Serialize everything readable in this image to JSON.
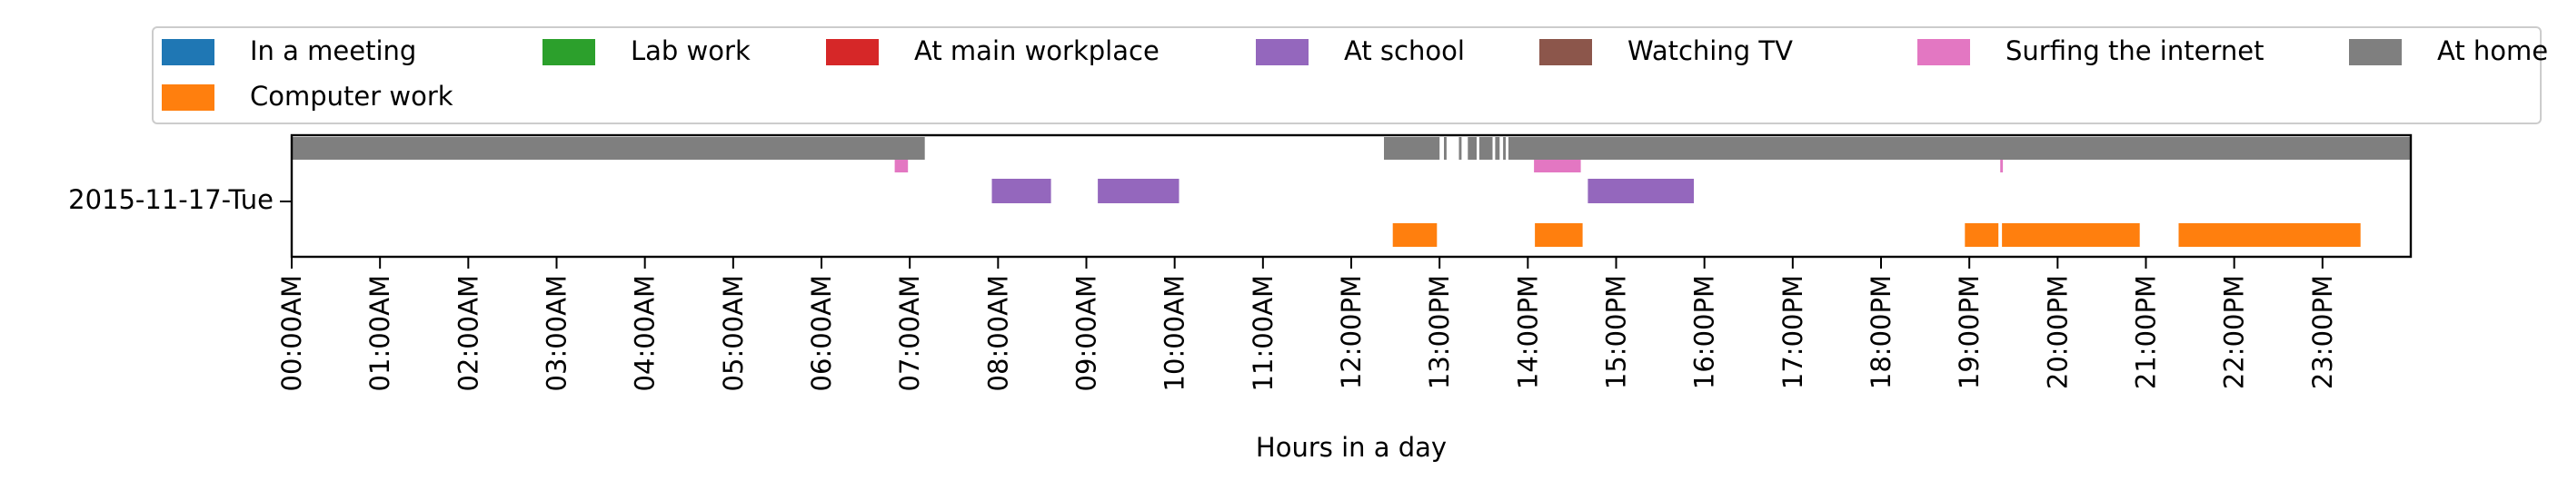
{
  "chart_data": {
    "type": "timeline",
    "row_label": "2015-11-17-Tue",
    "xlabel": "Hours in a day",
    "xlim": [
      0,
      24
    ],
    "grid": false,
    "legend_placement": "top",
    "x_tick_labels": [
      "00:00AM",
      "01:00AM",
      "02:00AM",
      "03:00AM",
      "04:00AM",
      "05:00AM",
      "06:00AM",
      "07:00AM",
      "08:00AM",
      "09:00AM",
      "10:00AM",
      "11:00AM",
      "12:00PM",
      "13:00PM",
      "14:00PM",
      "15:00PM",
      "16:00PM",
      "17:00PM",
      "18:00PM",
      "19:00PM",
      "20:00PM",
      "21:00PM",
      "22:00PM",
      "23:00PM"
    ],
    "categories": [
      {
        "name": "In a meeting",
        "color": "#1f77b4"
      },
      {
        "name": "Lab work",
        "color": "#2ca02c"
      },
      {
        "name": "At main workplace",
        "color": "#d62728"
      },
      {
        "name": "At school",
        "color": "#9467bd"
      },
      {
        "name": "Watching TV",
        "color": "#8c564b"
      },
      {
        "name": "Surfing the internet",
        "color": "#e377c2"
      },
      {
        "name": "At home",
        "color": "#7f7f7f"
      },
      {
        "name": "Computer work",
        "color": "#ff7f0e"
      }
    ],
    "series": [
      {
        "name": "At home",
        "intervals": [
          [
            0,
            7.17
          ],
          [
            12.37,
            13.0
          ],
          [
            13.05,
            13.08
          ],
          [
            13.22,
            13.25
          ],
          [
            13.32,
            13.42
          ],
          [
            13.45,
            13.6
          ],
          [
            13.63,
            13.68
          ],
          [
            13.72,
            13.75
          ],
          [
            13.78,
            24.0
          ]
        ]
      },
      {
        "name": "Surfing the internet",
        "intervals": [
          [
            6.83,
            6.98
          ],
          [
            14.07,
            14.6
          ],
          [
            19.35,
            19.38
          ]
        ]
      },
      {
        "name": "At school",
        "intervals": [
          [
            7.93,
            8.6
          ],
          [
            9.13,
            10.05
          ],
          [
            14.68,
            15.88
          ]
        ]
      },
      {
        "name": "Computer work",
        "intervals": [
          [
            12.47,
            12.97
          ],
          [
            14.08,
            14.62
          ],
          [
            18.95,
            19.33
          ],
          [
            19.37,
            20.93
          ],
          [
            21.37,
            23.43
          ]
        ]
      }
    ]
  }
}
